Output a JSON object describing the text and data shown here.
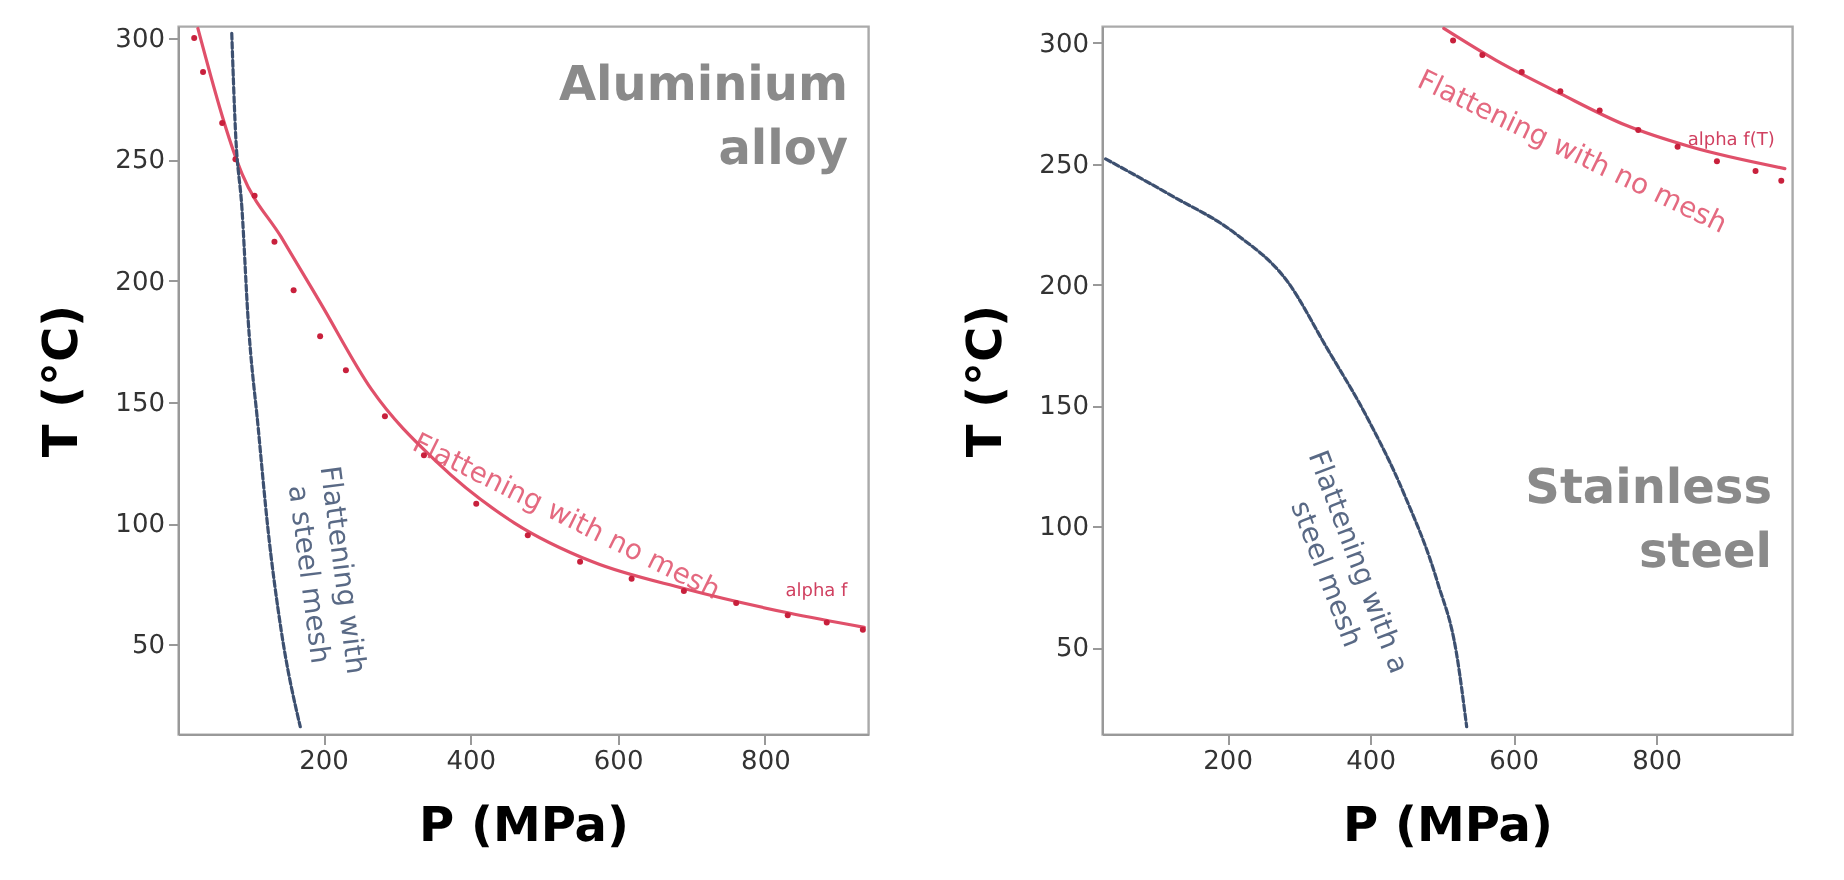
{
  "chart_data": [
    {
      "type": "line",
      "title": "Aluminium alloy",
      "xlabel": "P (MPa)",
      "ylabel": "T (°C)",
      "xlim": [
        3,
        940
      ],
      "ylim": [
        13,
        305
      ],
      "xticks": [
        200,
        400,
        600,
        800
      ],
      "yticks": [
        50,
        100,
        150,
        200,
        250,
        300
      ],
      "grid": false,
      "series": [
        {
          "name": "Flattening with no mesh",
          "color": "#e0506a",
          "line_style": "solid",
          "x": [
            30,
            90,
            143,
            196,
            266,
            355,
            460,
            566,
            690,
            831,
            935
          ],
          "values": [
            304,
            244,
            218,
            191,
            155,
            125,
            100,
            84,
            73,
            63,
            57
          ]
        },
        {
          "type": "scatter",
          "color": "#c8203c",
          "marker": "circle",
          "x": [
            25,
            37,
            63,
            81,
            107,
            134,
            160,
            196,
            231,
            284,
            337,
            408,
            478,
            549,
            619,
            690,
            761,
            831,
            884,
            933
          ],
          "values": [
            300,
            286,
            265,
            250,
            235,
            216,
            196,
            177,
            163,
            144,
            128,
            108,
            95,
            84,
            77,
            72,
            67,
            62,
            59,
            56
          ]
        },
        {
          "name": "Flattening with a steel mesh",
          "color": "#3d5070",
          "line_style": "dashed",
          "x": [
            76,
            81,
            90,
            98,
            112,
            125,
            143,
            169
          ],
          "values": [
            302,
            262,
            229,
            185,
            139,
            98,
            56,
            16
          ]
        }
      ],
      "annotations": [
        {
          "text": "alpha f",
          "x": 870,
          "y": 64
        }
      ]
    },
    {
      "type": "line",
      "title": "Stainless steel",
      "xlabel": "P (MPa)",
      "ylabel": "T (°C)",
      "xlim": [
        25,
        990
      ],
      "ylim": [
        14,
        307
      ],
      "xticks": [
        200,
        400,
        600,
        800
      ],
      "yticks": [
        50,
        100,
        150,
        200,
        250,
        300
      ],
      "grid": false,
      "series": [
        {
          "name": "Flattening with no mesh",
          "color": "#e0506a",
          "line_style": "solid",
          "x": [
            503,
            575,
            666,
            757,
            848,
            980
          ],
          "values": [
            306,
            293,
            279,
            266,
            257,
            248
          ]
        },
        {
          "type": "scatter",
          "color": "#c8203c",
          "marker": "circle",
          "x": [
            516,
            557,
            612,
            666,
            721,
            775,
            830,
            885,
            939,
            975
          ],
          "values": [
            301,
            295,
            288,
            280,
            272,
            264,
            257,
            251,
            247,
            243
          ]
        },
        {
          "name": "Flattening with a steel mesh",
          "color": "#3d5070",
          "line_style": "dashed",
          "x": [
            30,
            121,
            212,
            285,
            339,
            394,
            448,
            494,
            521,
            535
          ],
          "values": [
            252,
            237,
            221,
            201,
            174,
            146,
            113,
            77,
            47,
            17
          ]
        }
      ],
      "annotations": [
        {
          "text": "alpha f(T)",
          "x": 905,
          "y": 252
        }
      ]
    }
  ]
}
